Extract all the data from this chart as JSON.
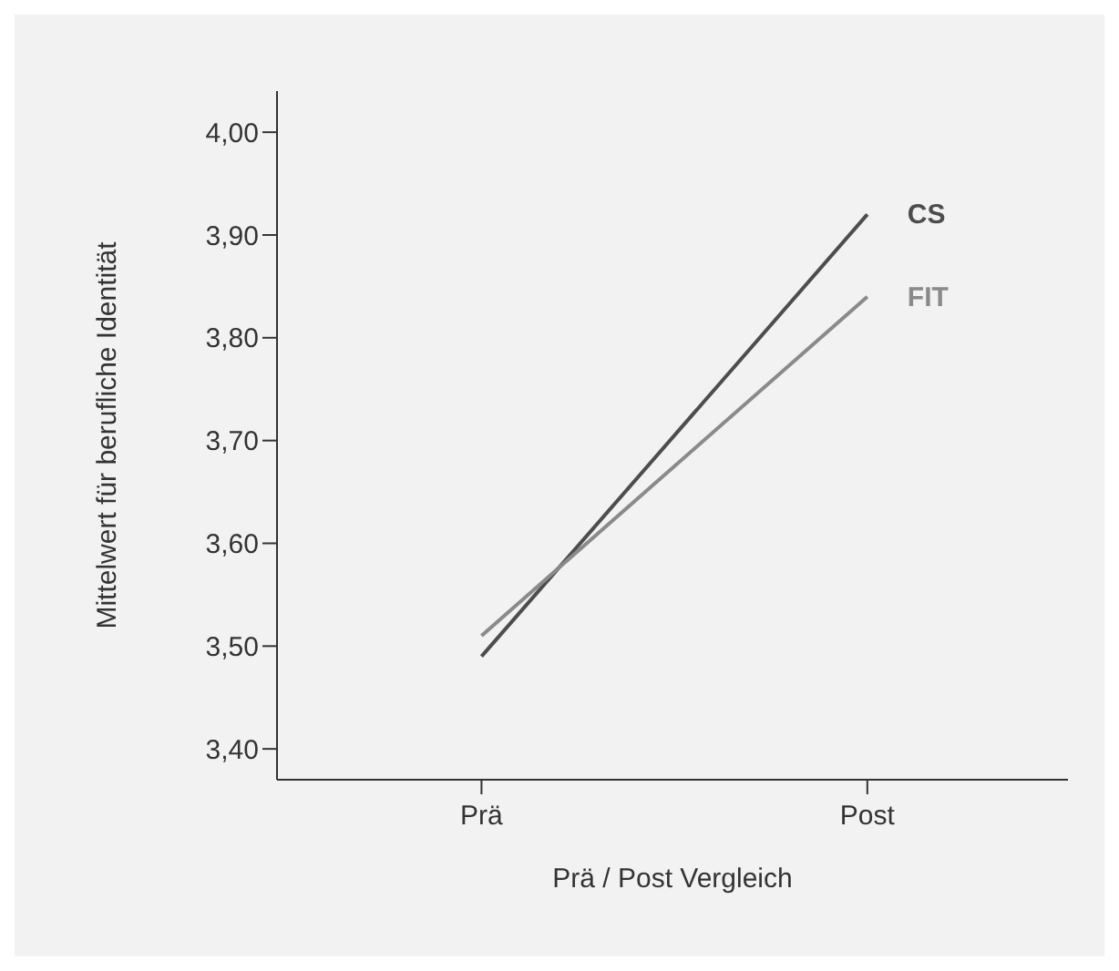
{
  "chart_data": {
    "type": "line",
    "xlabel": "Prä / Post Vergleich",
    "ylabel": "Mittelwert für berufliche Identität",
    "categories": [
      "Prä",
      "Post"
    ],
    "series": [
      {
        "name": "CS",
        "color": "#4d4d4d",
        "values": [
          3.49,
          3.92
        ]
      },
      {
        "name": "FIT",
        "color": "#8a8a8a",
        "values": [
          3.51,
          3.84
        ]
      }
    ],
    "ylim": [
      3.37,
      4.04
    ],
    "yticks": [
      {
        "value": 3.4,
        "label": "3,40"
      },
      {
        "value": 3.5,
        "label": "3,50"
      },
      {
        "value": 3.6,
        "label": "3,60"
      },
      {
        "value": 3.7,
        "label": "3,70"
      },
      {
        "value": 3.8,
        "label": "3,80"
      },
      {
        "value": 3.9,
        "label": "3,90"
      },
      {
        "value": 4.0,
        "label": "4,00"
      }
    ],
    "grid": false,
    "legend": false,
    "marker": "none",
    "line_style": "solid"
  }
}
